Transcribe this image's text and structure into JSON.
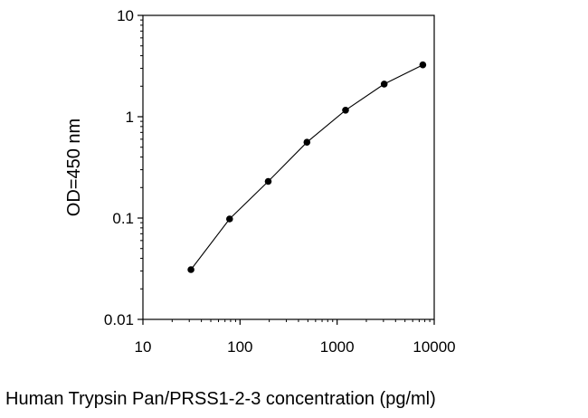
{
  "chart_data": {
    "type": "line",
    "title": "",
    "xlabel": "Human Trypsin Pan/PRSS1-2-3 concentration (pg/ml)",
    "ylabel": "OD=450 nm",
    "xscale": "log",
    "yscale": "log",
    "xlim": [
      10,
      10000
    ],
    "ylim": [
      0.01,
      10
    ],
    "xticks": [
      "10",
      "100",
      "1000",
      "10000"
    ],
    "yticks": [
      "0.01",
      "0.1",
      "1",
      "10"
    ],
    "grid": false,
    "legend": "none",
    "series": [
      {
        "x": [
          31.25,
          78.1,
          195.3,
          488.3,
          1220.7,
          3051.8,
          7629.4
        ],
        "y": [
          0.031,
          0.098,
          0.23,
          0.56,
          1.16,
          2.1,
          3.25
        ]
      }
    ],
    "colors": {
      "line": "#000000",
      "marker": "#000000",
      "axis": "#000000"
    }
  }
}
